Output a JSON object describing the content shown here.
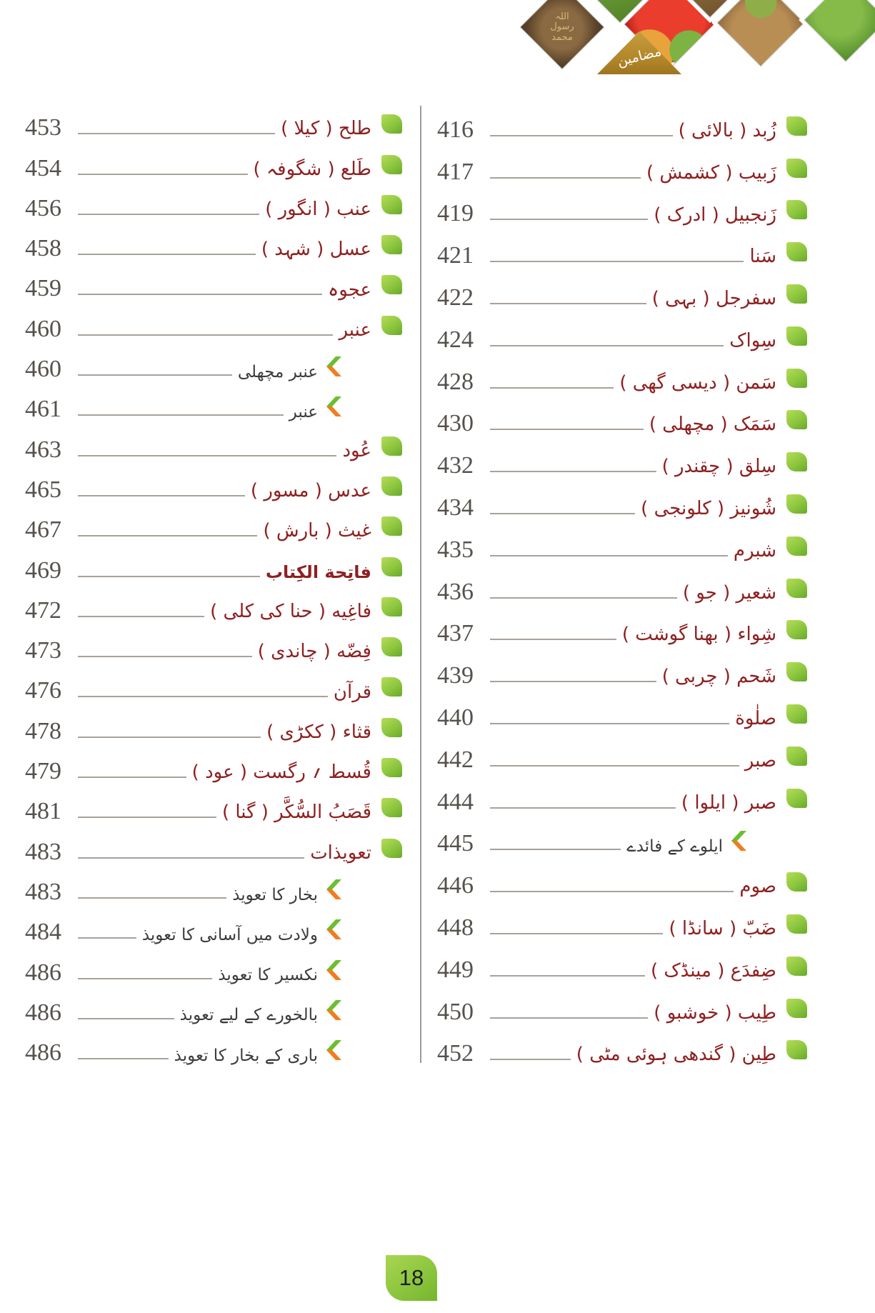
{
  "header": {
    "badge_label": "مضامین",
    "seal_words": [
      "اللہ",
      "رسول",
      "محمد"
    ],
    "images": [
      {
        "name": "prophet-seal-coin"
      },
      {
        "name": "herbs-sliver"
      },
      {
        "name": "apple-and-honeycomb"
      },
      {
        "name": "spice-sliver"
      },
      {
        "name": "mortar-and-herbs"
      },
      {
        "name": "green-herbs"
      }
    ]
  },
  "page_number": "18",
  "colors": {
    "entry_red": "#8e2021",
    "sub_text": "#3b3b3b",
    "number_gray": "#55514c",
    "leader_gray": "#a8a29b",
    "bullet_green": "#8cc63e",
    "chevron_green": "#6abf2e",
    "chevron_orange": "#f07d1e",
    "badge_gold": "#b08428",
    "pagebox_green": "#8cc63e"
  },
  "toc": {
    "left_column": [
      {
        "page": "453",
        "title": "طلح ( کیلا )",
        "type": "main"
      },
      {
        "page": "454",
        "title": "طَلع ( شگوفہ )",
        "type": "main"
      },
      {
        "page": "456",
        "title": "عنب ( انگور )",
        "type": "main"
      },
      {
        "page": "458",
        "title": "عسل ( شہد )",
        "type": "main"
      },
      {
        "page": "459",
        "title": "عجوہ",
        "type": "main"
      },
      {
        "page": "460",
        "title": "عنبر",
        "type": "main"
      },
      {
        "page": "460",
        "title": "عنبر مچھلی",
        "type": "sub"
      },
      {
        "page": "461",
        "title": "عنبر",
        "type": "sub"
      },
      {
        "page": "463",
        "title": "عُود",
        "type": "main"
      },
      {
        "page": "465",
        "title": "عدس ( مسور )",
        "type": "main"
      },
      {
        "page": "467",
        "title": "غیث ( بارش )",
        "type": "main"
      },
      {
        "page": "469",
        "title": "فاتِحة الکِتاب",
        "type": "main",
        "style": "naskh"
      },
      {
        "page": "472",
        "title": "فاغِیه ( حنا کی کلی )",
        "type": "main"
      },
      {
        "page": "473",
        "title": "فِضّه ( چاندی )",
        "type": "main"
      },
      {
        "page": "476",
        "title": "قرآن",
        "type": "main"
      },
      {
        "page": "478",
        "title": "قثاء ( ککڑی )",
        "type": "main"
      },
      {
        "page": "479",
        "title": "قُسط ؍ رگست ( عود )",
        "type": "main"
      },
      {
        "page": "481",
        "title": "قَصَبُ السُّکَّر ( گنا )",
        "type": "main"
      },
      {
        "page": "483",
        "title": "تعویذات",
        "type": "main"
      },
      {
        "page": "483",
        "title": "بخار کا تعویذ",
        "type": "sub"
      },
      {
        "page": "484",
        "title": "ولادت میں آسانی کا تعویذ",
        "type": "sub"
      },
      {
        "page": "486",
        "title": "نکسیر کا تعویذ",
        "type": "sub"
      },
      {
        "page": "486",
        "title": "بالخورے کے لیے تعویذ",
        "type": "sub"
      },
      {
        "page": "486",
        "title": "باری کے بخار کا تعویذ",
        "type": "sub"
      }
    ],
    "right_column": [
      {
        "page": "416",
        "title": "زُبد ( بالائی )",
        "type": "main"
      },
      {
        "page": "417",
        "title": "زَبیب ( کشمش )",
        "type": "main"
      },
      {
        "page": "419",
        "title": "زَنجبیل ( ادرک )",
        "type": "main"
      },
      {
        "page": "421",
        "title": "سَنا",
        "type": "main"
      },
      {
        "page": "422",
        "title": "سفرجل ( بہی )",
        "type": "main"
      },
      {
        "page": "424",
        "title": "سِواک",
        "type": "main"
      },
      {
        "page": "428",
        "title": "سَمن ( دیسی گھی )",
        "type": "main"
      },
      {
        "page": "430",
        "title": "سَمَک ( مچھلی )",
        "type": "main"
      },
      {
        "page": "432",
        "title": "سِلق ( چقندر )",
        "type": "main"
      },
      {
        "page": "434",
        "title": "شُونیز ( کلونجی )",
        "type": "main"
      },
      {
        "page": "435",
        "title": "شبرم",
        "type": "main"
      },
      {
        "page": "436",
        "title": "شعیر ( جو )",
        "type": "main"
      },
      {
        "page": "437",
        "title": "شِواء ( بھنا گوشت )",
        "type": "main"
      },
      {
        "page": "439",
        "title": "شَحم ( چربی )",
        "type": "main"
      },
      {
        "page": "440",
        "title": "صلٰوة",
        "type": "main"
      },
      {
        "page": "442",
        "title": "صبر",
        "type": "main"
      },
      {
        "page": "444",
        "title": "صبر ( ایلوا )",
        "type": "main"
      },
      {
        "page": "445",
        "title": "ایلوے کے فائدے",
        "type": "sub"
      },
      {
        "page": "446",
        "title": "صوم",
        "type": "main"
      },
      {
        "page": "448",
        "title": "ضَبّ ( سانڈا )",
        "type": "main"
      },
      {
        "page": "449",
        "title": "ضِفدَع ( مینڈک )",
        "type": "main"
      },
      {
        "page": "450",
        "title": "طِیب ( خوشبو )",
        "type": "main"
      },
      {
        "page": "452",
        "title": "طِین ( گندھی ہوئی مٹی )",
        "type": "main"
      }
    ]
  }
}
